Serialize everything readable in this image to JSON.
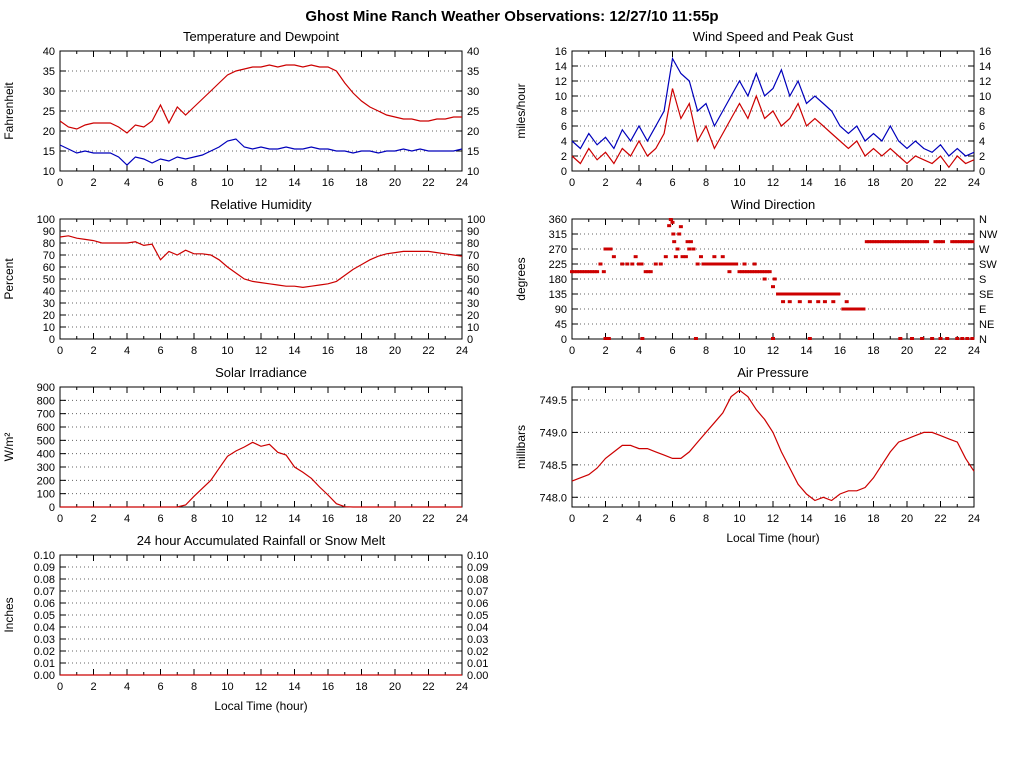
{
  "page_title": "Ghost Mine Ranch Weather Observations: 12/27/10 11:55p",
  "colors": {
    "series_red": "#cc0000",
    "series_blue": "#0000bb",
    "grid": "#666666",
    "axis": "#000000"
  },
  "x_axis": {
    "label": "Local Time (hour)",
    "ticks": [
      0,
      2,
      4,
      6,
      8,
      10,
      12,
      14,
      16,
      18,
      20,
      22,
      24
    ]
  },
  "chart_data": [
    {
      "id": "temperature_dewpoint",
      "type": "line",
      "title": "Temperature and Dewpoint",
      "ylabel": "Fahrenheit",
      "ylim": [
        10,
        40
      ],
      "yticks": [
        10,
        15,
        20,
        25,
        30,
        35,
        40
      ],
      "ydecimals": 0,
      "right_labels": "same",
      "xlim": [
        0,
        24
      ],
      "series": [
        {
          "name": "temperature",
          "color": "#cc0000",
          "x_start": 0,
          "x_step": 0.5,
          "y": [
            22.5,
            21,
            20.5,
            21.5,
            22,
            22,
            22,
            21,
            19.5,
            21.5,
            21,
            22.5,
            26.5,
            22,
            26,
            24,
            26,
            28,
            30,
            32,
            34,
            35,
            35.5,
            36,
            36,
            36.5,
            36,
            36.5,
            36.5,
            36,
            36.5,
            36,
            36,
            35,
            32,
            29.5,
            27.5,
            26,
            25,
            24,
            23.5,
            23,
            23,
            22.5,
            22.5,
            23,
            23,
            23.5,
            23.5
          ]
        },
        {
          "name": "dewpoint",
          "color": "#0000bb",
          "x_start": 0,
          "x_step": 0.5,
          "y": [
            16.5,
            15.5,
            14.5,
            15,
            14.5,
            14.5,
            14.5,
            13.5,
            11.5,
            13.5,
            13,
            12,
            13,
            12.5,
            13.5,
            13,
            13.5,
            14,
            15,
            16,
            17.5,
            18,
            16,
            15.5,
            16,
            15.5,
            15.5,
            16,
            15.5,
            15.5,
            16,
            15.5,
            15.5,
            15,
            15,
            14.5,
            15,
            15,
            14.5,
            15,
            15,
            15.5,
            15,
            15.5,
            15,
            15,
            15,
            15,
            15.5
          ]
        }
      ]
    },
    {
      "id": "wind_speed_gust",
      "type": "line",
      "title": "Wind Speed and Peak Gust",
      "ylabel": "miles/hour",
      "ylim": [
        0,
        16
      ],
      "yticks": [
        0,
        2,
        4,
        6,
        8,
        10,
        12,
        14,
        16
      ],
      "ydecimals": 0,
      "right_labels": "same",
      "xlim": [
        0,
        24
      ],
      "series": [
        {
          "name": "peak_gust",
          "color": "#0000bb",
          "x_start": 0,
          "x_step": 0.5,
          "y": [
            4,
            3,
            5,
            3.5,
            4.5,
            3,
            5.5,
            4,
            6,
            4,
            6,
            8,
            15,
            13,
            12,
            8,
            9,
            6,
            8,
            10,
            12,
            10,
            13,
            10,
            11,
            13.5,
            10,
            12,
            9,
            10,
            9,
            8,
            6,
            5,
            6,
            4,
            5,
            4,
            6,
            4,
            3,
            4,
            3,
            2.5,
            3.5,
            2,
            3,
            2,
            2.5
          ]
        },
        {
          "name": "wind_speed",
          "color": "#cc0000",
          "x_start": 0,
          "x_step": 0.5,
          "y": [
            2,
            1,
            3,
            1.5,
            2.5,
            1,
            3,
            2,
            4,
            2,
            3,
            5,
            11,
            7,
            9,
            4,
            6,
            3,
            5,
            7,
            9,
            7,
            10,
            7,
            8,
            6,
            7,
            9,
            6,
            7,
            6,
            5,
            4,
            3,
            4,
            2,
            3,
            2,
            3,
            2,
            1,
            2,
            1.5,
            1,
            2,
            0.5,
            2,
            1,
            1.5
          ]
        }
      ]
    },
    {
      "id": "relative_humidity",
      "type": "line",
      "title": "Relative Humidity",
      "ylabel": "Percent",
      "ylim": [
        0,
        100
      ],
      "yticks": [
        0,
        10,
        20,
        30,
        40,
        50,
        60,
        70,
        80,
        90,
        100
      ],
      "ydecimals": 0,
      "right_labels": "same",
      "xlim": [
        0,
        24
      ],
      "series": [
        {
          "name": "humidity",
          "color": "#cc0000",
          "x_start": 0,
          "x_step": 0.5,
          "y": [
            85,
            86,
            84,
            83,
            82,
            80,
            80,
            80,
            80,
            81,
            78,
            79,
            66,
            73,
            70,
            74,
            71,
            71,
            70,
            66,
            60,
            55,
            50,
            48,
            47,
            46,
            45,
            44,
            44,
            43,
            44,
            45,
            46,
            48,
            53,
            58,
            62,
            66,
            69,
            71,
            72,
            73,
            73,
            73,
            73,
            72,
            71,
            70,
            69
          ]
        }
      ]
    },
    {
      "id": "wind_direction",
      "type": "scatter",
      "title": "Wind Direction",
      "ylabel": "degrees",
      "ylim": [
        0,
        360
      ],
      "yticks": [
        0,
        45,
        90,
        135,
        180,
        225,
        270,
        315,
        360
      ],
      "ydecimals": 0,
      "right_labels": [
        "N",
        "NE",
        "E",
        "SE",
        "S",
        "SW",
        "W",
        "NW",
        "N"
      ],
      "xlim": [
        0,
        24
      ],
      "color": "#cc0000",
      "runs": [
        {
          "y": 202,
          "x0": 0,
          "x1": 1.5,
          "step": 0.15
        },
        {
          "y": 225,
          "x0": 8.0,
          "x1": 9.8,
          "step": 0.15
        },
        {
          "y": 202,
          "x0": 10.0,
          "x1": 11.8,
          "step": 0.15
        },
        {
          "y": 135,
          "x0": 12.3,
          "x1": 16.0,
          "step": 0.15
        },
        {
          "y": 90,
          "x0": 16.2,
          "x1": 17.4,
          "step": 0.2
        },
        {
          "y": 292,
          "x0": 17.6,
          "x1": 21.2,
          "step": 0.15
        },
        {
          "y": 292,
          "x0": 21.7,
          "x1": 22.15,
          "step": 0.15
        },
        {
          "y": 292,
          "x0": 22.7,
          "x1": 23.9,
          "step": 0.15
        }
      ],
      "points": [
        [
          1.7,
          225
        ],
        [
          1.9,
          202
        ],
        [
          2.0,
          270
        ],
        [
          2.15,
          270
        ],
        [
          2.3,
          270
        ],
        [
          2.5,
          247
        ],
        [
          2.0,
          0
        ],
        [
          2.2,
          0
        ],
        [
          3.0,
          225
        ],
        [
          3.3,
          225
        ],
        [
          3.6,
          225
        ],
        [
          3.8,
          247
        ],
        [
          4.0,
          225
        ],
        [
          4.15,
          225
        ],
        [
          4.4,
          202
        ],
        [
          4.55,
          202
        ],
        [
          4.7,
          202
        ],
        [
          4.2,
          0
        ],
        [
          5.0,
          225
        ],
        [
          5.3,
          225
        ],
        [
          5.6,
          247
        ],
        [
          5.8,
          340
        ],
        [
          5.9,
          360
        ],
        [
          6.0,
          350
        ],
        [
          6.05,
          315
        ],
        [
          6.1,
          292
        ],
        [
          6.2,
          247
        ],
        [
          6.3,
          270
        ],
        [
          6.4,
          315
        ],
        [
          6.5,
          337
        ],
        [
          6.6,
          247
        ],
        [
          6.8,
          247
        ],
        [
          6.9,
          292
        ],
        [
          7.0,
          270
        ],
        [
          7.1,
          292
        ],
        [
          7.25,
          270
        ],
        [
          7.4,
          0
        ],
        [
          7.5,
          225
        ],
        [
          7.7,
          247
        ],
        [
          7.85,
          225
        ],
        [
          8.5,
          247
        ],
        [
          9.0,
          247
        ],
        [
          9.4,
          202
        ],
        [
          10.3,
          225
        ],
        [
          10.9,
          225
        ],
        [
          11.5,
          180
        ],
        [
          12.0,
          157
        ],
        [
          12.1,
          180
        ],
        [
          12.0,
          0
        ],
        [
          12.6,
          112
        ],
        [
          13.0,
          112
        ],
        [
          13.6,
          112
        ],
        [
          14.2,
          112
        ],
        [
          14.7,
          112
        ],
        [
          15.1,
          112
        ],
        [
          15.6,
          112
        ],
        [
          14.2,
          0
        ],
        [
          16.4,
          112
        ],
        [
          19.6,
          0
        ],
        [
          20.3,
          0
        ],
        [
          20.9,
          0
        ],
        [
          21.5,
          0
        ],
        [
          22.0,
          0
        ],
        [
          22.4,
          0
        ],
        [
          23.0,
          0
        ],
        [
          23.3,
          0
        ],
        [
          23.6,
          0
        ],
        [
          23.9,
          0
        ]
      ]
    },
    {
      "id": "solar_irradiance",
      "type": "line",
      "title": "Solar Irradiance",
      "ylabel": "W/m²",
      "ylim": [
        0,
        900
      ],
      "yticks": [
        0,
        100,
        200,
        300,
        400,
        500,
        600,
        700,
        800,
        900
      ],
      "ydecimals": 0,
      "right_labels": "none",
      "xlim": [
        0,
        24
      ],
      "series": [
        {
          "name": "irradiance",
          "color": "#cc0000",
          "x_start": 0,
          "x_step": 0.5,
          "y": [
            0,
            0,
            0,
            0,
            0,
            0,
            0,
            0,
            0,
            0,
            0,
            0,
            0,
            0,
            0,
            15,
            80,
            140,
            200,
            290,
            380,
            420,
            450,
            485,
            455,
            470,
            410,
            390,
            300,
            260,
            215,
            150,
            90,
            25,
            2,
            0,
            0,
            0,
            0,
            0,
            0,
            0,
            0,
            0,
            0,
            0,
            0,
            0,
            0
          ]
        }
      ]
    },
    {
      "id": "air_pressure",
      "type": "line",
      "title": "Air Pressure",
      "ylabel": "millibars",
      "ylim": [
        747.85,
        749.7
      ],
      "yticks": [
        748.0,
        748.5,
        749.0,
        749.5
      ],
      "ydecimals": 1,
      "right_labels": "none",
      "xlim": [
        0,
        24
      ],
      "xlabel": "Local Time (hour)",
      "series": [
        {
          "name": "pressure",
          "color": "#cc0000",
          "x_start": 0,
          "x_step": 0.5,
          "y": [
            748.25,
            748.3,
            748.35,
            748.45,
            748.6,
            748.7,
            748.8,
            748.8,
            748.75,
            748.75,
            748.7,
            748.65,
            748.6,
            748.6,
            748.7,
            748.85,
            749.0,
            749.15,
            749.3,
            749.55,
            749.65,
            749.55,
            749.35,
            749.2,
            749.0,
            748.7,
            748.45,
            748.2,
            748.05,
            747.95,
            748.0,
            747.95,
            748.05,
            748.1,
            748.1,
            748.15,
            748.3,
            748.5,
            748.7,
            748.85,
            748.9,
            748.95,
            749.0,
            749.0,
            748.95,
            748.9,
            748.85,
            748.6,
            748.4
          ]
        }
      ]
    },
    {
      "id": "rainfall",
      "type": "line",
      "title": "24 hour Accumulated Rainfall or Snow Melt",
      "ylabel": "Inches",
      "ylim": [
        0,
        0.1
      ],
      "yticks": [
        0,
        0.01,
        0.02,
        0.03,
        0.04,
        0.05,
        0.06,
        0.07,
        0.08,
        0.09,
        0.1
      ],
      "ydecimals": 2,
      "right_labels": "same",
      "xlim": [
        0,
        24
      ],
      "xlabel": "Local Time (hour)",
      "series": [
        {
          "name": "rainfall",
          "color": "#cc0000",
          "x": [
            0,
            24
          ],
          "y": [
            0,
            0
          ]
        }
      ]
    }
  ]
}
